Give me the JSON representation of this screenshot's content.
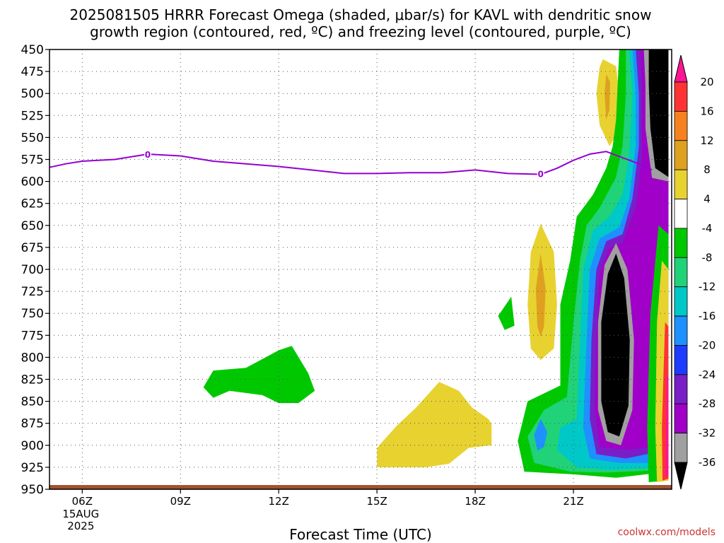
{
  "chart_data": {
    "type": "heatmap",
    "title_lines": [
      "2025081505 HRRR Forecast Omega (shaded, μbar/s) for KAVL with dendritic snow",
      "growth region (contoured, red, ºC) and freezing level (contoured, purple, ºC)"
    ],
    "xlabel": "Forecast Time (UTC)",
    "credit": "coolwx.com/models",
    "x_range_hours": [
      5,
      24
    ],
    "x_ticks": [
      {
        "hour": 6,
        "label": "06Z",
        "sub": [
          "15AUG",
          "2025"
        ]
      },
      {
        "hour": 9,
        "label": "09Z",
        "sub": []
      },
      {
        "hour": 12,
        "label": "12Z",
        "sub": []
      },
      {
        "hour": 15,
        "label": "15Z",
        "sub": []
      },
      {
        "hour": 18,
        "label": "18Z",
        "sub": []
      },
      {
        "hour": 21,
        "label": "21Z",
        "sub": []
      }
    ],
    "y_ticks_mb": [
      450,
      475,
      500,
      525,
      550,
      575,
      600,
      625,
      650,
      675,
      700,
      725,
      750,
      775,
      800,
      825,
      850,
      875,
      900,
      925,
      950
    ],
    "y_range_mb": [
      450,
      950
    ],
    "colorbar": {
      "labels": [
        "20",
        "16",
        "12",
        "8",
        "4",
        "-4",
        "-8",
        "-12",
        "-16",
        "-20",
        "-24",
        "-28",
        "-32",
        "-36"
      ],
      "colors": [
        "#ff1493",
        "#ff3333",
        "#f5821f",
        "#dfa020",
        "#e8d230",
        "#ffffff",
        "#00c800",
        "#20d278",
        "#00c8c8",
        "#1e90ff",
        "#1e3cff",
        "#7a1ec8",
        "#a000c8",
        "#a0a0a0",
        "#000000"
      ]
    },
    "freezing_level": {
      "label": "0",
      "color": "#9400d3",
      "label_points": [
        {
          "hour": 8,
          "mb": 569
        },
        {
          "hour": 20,
          "mb": 591
        }
      ],
      "points": [
        {
          "hour": 5.0,
          "mb": 584
        },
        {
          "hour": 5.5,
          "mb": 580
        },
        {
          "hour": 6.0,
          "mb": 577
        },
        {
          "hour": 7.0,
          "mb": 575
        },
        {
          "hour": 8.0,
          "mb": 569
        },
        {
          "hour": 9.0,
          "mb": 571
        },
        {
          "hour": 10.0,
          "mb": 577
        },
        {
          "hour": 11.0,
          "mb": 580
        },
        {
          "hour": 12.0,
          "mb": 583
        },
        {
          "hour": 13.0,
          "mb": 587
        },
        {
          "hour": 14.0,
          "mb": 591
        },
        {
          "hour": 15.0,
          "mb": 591
        },
        {
          "hour": 16.0,
          "mb": 590
        },
        {
          "hour": 17.0,
          "mb": 590
        },
        {
          "hour": 18.0,
          "mb": 587
        },
        {
          "hour": 19.0,
          "mb": 591
        },
        {
          "hour": 20.0,
          "mb": 592
        },
        {
          "hour": 20.5,
          "mb": 585
        },
        {
          "hour": 21.0,
          "mb": 576
        },
        {
          "hour": 21.5,
          "mb": 569
        },
        {
          "hour": 22.0,
          "mb": 566
        },
        {
          "hour": 22.5,
          "mb": 573
        },
        {
          "hour": 23.0,
          "mb": 580
        },
        {
          "hour": 23.4,
          "mb": 587
        }
      ]
    },
    "omega_regions": [
      {
        "name": "green-blob-10-12z",
        "color": "#00c800",
        "points": [
          [
            10.0,
            815
          ],
          [
            11.0,
            812
          ],
          [
            12.0,
            792
          ],
          [
            12.4,
            787
          ],
          [
            12.9,
            818
          ],
          [
            13.1,
            838
          ],
          [
            12.6,
            852
          ],
          [
            12.0,
            852
          ],
          [
            11.5,
            843
          ],
          [
            10.5,
            838
          ],
          [
            10.0,
            846
          ],
          [
            9.7,
            834
          ]
        ]
      },
      {
        "name": "yellow-blob-15-19z",
        "color": "#e8d230",
        "points": [
          [
            15.0,
            903
          ],
          [
            15.6,
            878
          ],
          [
            16.2,
            857
          ],
          [
            16.9,
            828
          ],
          [
            17.5,
            838
          ],
          [
            17.9,
            857
          ],
          [
            18.4,
            870
          ],
          [
            18.5,
            876
          ],
          [
            18.5,
            900
          ],
          [
            17.8,
            903
          ],
          [
            17.2,
            921
          ],
          [
            16.5,
            925
          ],
          [
            15.0,
            925
          ]
        ]
      },
      {
        "name": "green-sliver-19z",
        "color": "#00c800",
        "points": [
          [
            19.1,
            731
          ],
          [
            19.2,
            764
          ],
          [
            18.9,
            769
          ],
          [
            18.7,
            753
          ]
        ]
      },
      {
        "name": "yellow-oval-20z",
        "color": "#e8d230",
        "points": [
          [
            20.0,
            648
          ],
          [
            20.4,
            680
          ],
          [
            20.5,
            740
          ],
          [
            20.4,
            790
          ],
          [
            20.0,
            803
          ],
          [
            19.7,
            790
          ],
          [
            19.6,
            740
          ],
          [
            19.7,
            680
          ]
        ]
      },
      {
        "name": "orange-core-20z",
        "color": "#dfa020",
        "points": [
          [
            20.0,
            682
          ],
          [
            20.15,
            722
          ],
          [
            20.1,
            765
          ],
          [
            20.0,
            777
          ],
          [
            19.9,
            765
          ],
          [
            19.85,
            722
          ]
        ]
      },
      {
        "name": "yellow-high-22z",
        "color": "#e8d230",
        "points": [
          [
            21.9,
            461
          ],
          [
            22.3,
            469
          ],
          [
            22.4,
            500
          ],
          [
            22.3,
            548
          ],
          [
            22.1,
            560
          ],
          [
            21.8,
            536
          ],
          [
            21.7,
            500
          ],
          [
            21.8,
            470
          ]
        ]
      },
      {
        "name": "orange-high-22z",
        "color": "#dfa020",
        "points": [
          [
            22.0,
            478
          ],
          [
            22.12,
            487
          ],
          [
            22.1,
            519
          ],
          [
            22.0,
            530
          ],
          [
            21.95,
            500
          ]
        ]
      },
      {
        "name": "green-envelope-21-24z",
        "color": "#00c800",
        "points": [
          [
            22.4,
            450
          ],
          [
            23.9,
            450
          ],
          [
            23.9,
            930
          ],
          [
            22.3,
            937
          ],
          [
            21.0,
            933
          ],
          [
            19.5,
            930
          ],
          [
            19.3,
            895
          ],
          [
            19.6,
            850
          ],
          [
            20.6,
            832
          ],
          [
            20.6,
            740
          ],
          [
            20.9,
            690
          ],
          [
            21.1,
            640
          ],
          [
            21.6,
            615
          ],
          [
            22.0,
            585
          ],
          [
            22.2,
            560
          ],
          [
            22.3,
            530
          ]
        ]
      },
      {
        "name": "teal-envelope",
        "color": "#20d278",
        "points": [
          [
            22.6,
            450
          ],
          [
            23.9,
            450
          ],
          [
            23.9,
            928
          ],
          [
            22.0,
            931
          ],
          [
            20.9,
            930
          ],
          [
            19.8,
            920
          ],
          [
            19.6,
            890
          ],
          [
            20.1,
            860
          ],
          [
            20.8,
            845
          ],
          [
            21.0,
            760
          ],
          [
            21.2,
            690
          ],
          [
            21.4,
            650
          ],
          [
            21.8,
            630
          ],
          [
            22.3,
            595
          ],
          [
            22.5,
            560
          ],
          [
            22.6,
            500
          ]
        ]
      },
      {
        "name": "cyan-envelope",
        "color": "#00c8c8",
        "points": [
          [
            22.7,
            450
          ],
          [
            23.9,
            450
          ],
          [
            23.9,
            925
          ],
          [
            22.1,
            928
          ],
          [
            21.1,
            925
          ],
          [
            20.5,
            905
          ],
          [
            20.6,
            880
          ],
          [
            21.1,
            870
          ],
          [
            21.2,
            780
          ],
          [
            21.3,
            700
          ],
          [
            21.6,
            655
          ],
          [
            22.1,
            640
          ],
          [
            22.5,
            615
          ],
          [
            22.7,
            570
          ],
          [
            22.8,
            500
          ]
        ]
      },
      {
        "name": "blue-core-20z",
        "color": "#1e90ff",
        "points": [
          [
            20.0,
            870
          ],
          [
            20.2,
            885
          ],
          [
            20.1,
            902
          ],
          [
            19.9,
            906
          ],
          [
            19.8,
            888
          ]
        ]
      },
      {
        "name": "blue-envelope",
        "color": "#1e90ff",
        "points": [
          [
            22.8,
            450
          ],
          [
            23.9,
            450
          ],
          [
            23.9,
            920
          ],
          [
            22.4,
            920
          ],
          [
            21.5,
            915
          ],
          [
            21.3,
            880
          ],
          [
            21.4,
            780
          ],
          [
            21.5,
            700
          ],
          [
            21.8,
            665
          ],
          [
            22.4,
            652
          ],
          [
            22.7,
            620
          ],
          [
            22.9,
            560
          ],
          [
            22.9,
            500
          ]
        ]
      },
      {
        "name": "purple-envelope",
        "color": "#7a1ec8",
        "points": [
          [
            22.9,
            450
          ],
          [
            23.9,
            450
          ],
          [
            23.9,
            905
          ],
          [
            22.6,
            915
          ],
          [
            21.7,
            910
          ],
          [
            21.5,
            870
          ],
          [
            21.55,
            780
          ],
          [
            21.7,
            700
          ],
          [
            22.0,
            668
          ],
          [
            22.5,
            660
          ],
          [
            22.8,
            620
          ],
          [
            23.0,
            560
          ],
          [
            23.0,
            500
          ]
        ]
      },
      {
        "name": "magenta-envelope",
        "color": "#a000c8",
        "points": [
          [
            23.05,
            450
          ],
          [
            23.9,
            450
          ],
          [
            23.9,
            900
          ],
          [
            22.7,
            905
          ],
          [
            21.8,
            902
          ],
          [
            21.65,
            860
          ],
          [
            21.7,
            780
          ],
          [
            21.8,
            705
          ],
          [
            22.1,
            675
          ],
          [
            22.5,
            670
          ],
          [
            22.9,
            630
          ],
          [
            23.1,
            570
          ],
          [
            23.1,
            500
          ]
        ]
      },
      {
        "name": "gray-envelope",
        "color": "#a0a0a0",
        "points": [
          [
            23.15,
            450
          ],
          [
            23.9,
            450
          ],
          [
            23.9,
            600
          ],
          [
            23.4,
            596
          ],
          [
            23.2,
            540
          ],
          [
            23.2,
            490
          ]
        ]
      },
      {
        "name": "black-upper",
        "color": "#000000",
        "points": [
          [
            23.3,
            450
          ],
          [
            23.9,
            450
          ],
          [
            23.9,
            595
          ],
          [
            23.5,
            585
          ],
          [
            23.35,
            540
          ],
          [
            23.3,
            490
          ]
        ]
      },
      {
        "name": "gray-oval",
        "color": "#a0a0a0",
        "points": [
          [
            22.3,
            670
          ],
          [
            22.65,
            700
          ],
          [
            22.85,
            780
          ],
          [
            22.8,
            860
          ],
          [
            22.45,
            900
          ],
          [
            22.0,
            895
          ],
          [
            21.75,
            860
          ],
          [
            21.75,
            760
          ],
          [
            21.95,
            695
          ]
        ]
      },
      {
        "name": "black-oval",
        "color": "#000000",
        "points": [
          [
            22.3,
            682
          ],
          [
            22.55,
            710
          ],
          [
            22.72,
            780
          ],
          [
            22.68,
            855
          ],
          [
            22.4,
            890
          ],
          [
            22.05,
            885
          ],
          [
            21.85,
            850
          ],
          [
            21.85,
            760
          ],
          [
            22.05,
            705
          ]
        ]
      },
      {
        "name": "green-low-right",
        "color": "#00c800",
        "points": [
          [
            23.6,
            650
          ],
          [
            23.9,
            660
          ],
          [
            23.9,
            940
          ],
          [
            23.3,
            942
          ],
          [
            23.25,
            880
          ],
          [
            23.35,
            750
          ]
        ]
      },
      {
        "name": "yellow-low-right",
        "color": "#e8d230",
        "points": [
          [
            23.7,
            690
          ],
          [
            23.9,
            700
          ],
          [
            23.9,
            940
          ],
          [
            23.55,
            942
          ],
          [
            23.5,
            880
          ],
          [
            23.55,
            760
          ]
        ]
      },
      {
        "name": "red-low-right",
        "color": "#ff3333",
        "points": [
          [
            23.8,
            760
          ],
          [
            23.9,
            765
          ],
          [
            23.9,
            938
          ],
          [
            23.72,
            940
          ],
          [
            23.7,
            880
          ]
        ]
      },
      {
        "name": "pink-low-right",
        "color": "#ff1493",
        "points": [
          [
            23.85,
            820
          ],
          [
            23.9,
            822
          ],
          [
            23.9,
            935
          ],
          [
            23.8,
            936
          ]
        ]
      }
    ]
  }
}
